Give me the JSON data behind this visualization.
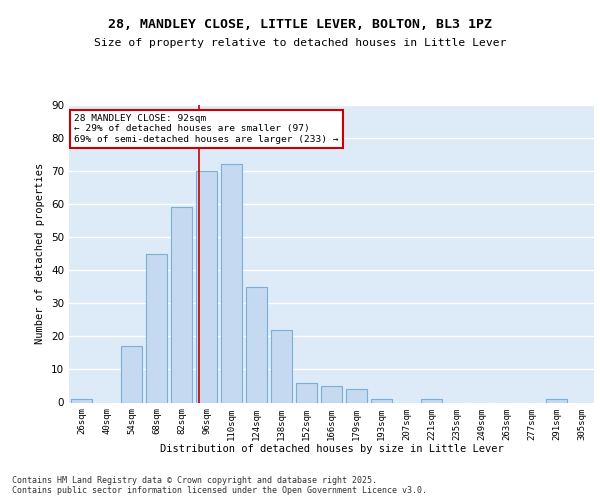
{
  "title1": "28, MANDLEY CLOSE, LITTLE LEVER, BOLTON, BL3 1PZ",
  "title2": "Size of property relative to detached houses in Little Lever",
  "xlabel": "Distribution of detached houses by size in Little Lever",
  "ylabel": "Number of detached properties",
  "categories": [
    "26sqm",
    "40sqm",
    "54sqm",
    "68sqm",
    "82sqm",
    "96sqm",
    "110sqm",
    "124sqm",
    "138sqm",
    "152sqm",
    "166sqm",
    "179sqm",
    "193sqm",
    "207sqm",
    "221sqm",
    "235sqm",
    "249sqm",
    "263sqm",
    "277sqm",
    "291sqm",
    "305sqm"
  ],
  "values": [
    1,
    0,
    17,
    45,
    59,
    70,
    72,
    35,
    22,
    6,
    5,
    4,
    1,
    0,
    1,
    0,
    0,
    0,
    0,
    1,
    0
  ],
  "bar_color": "#c5d9f0",
  "bar_edge_color": "#7bafd4",
  "background_color": "#ddeaf8",
  "grid_color": "#ffffff",
  "annotation_box_text": "28 MANDLEY CLOSE: 92sqm\n← 29% of detached houses are smaller (97)\n69% of semi-detached houses are larger (233) →",
  "annotation_box_color": "#ffffff",
  "annotation_box_edge_color": "#cc0000",
  "vline_x_index": 5,
  "vline_color": "#cc0000",
  "footer_text": "Contains HM Land Registry data © Crown copyright and database right 2025.\nContains public sector information licensed under the Open Government Licence v3.0.",
  "ylim": [
    0,
    90
  ],
  "yticks": [
    0,
    10,
    20,
    30,
    40,
    50,
    60,
    70,
    80,
    90
  ]
}
